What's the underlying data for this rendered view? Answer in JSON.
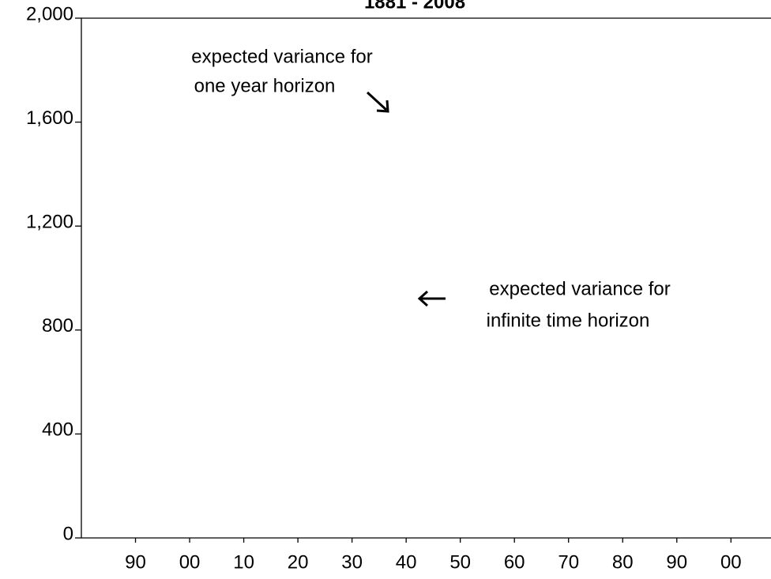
{
  "chart_data": {
    "type": "line",
    "title": "1881 - 2008",
    "xlim": [
      1880,
      2007.4
    ],
    "xticks": [
      {
        "value": 1890,
        "label": "90"
      },
      {
        "value": 1900,
        "label": "00"
      },
      {
        "value": 1910,
        "label": "10"
      },
      {
        "value": 1920,
        "label": "20"
      },
      {
        "value": 1930,
        "label": "30"
      },
      {
        "value": 1940,
        "label": "40"
      },
      {
        "value": 1950,
        "label": "50"
      },
      {
        "value": 1960,
        "label": "60"
      },
      {
        "value": 1970,
        "label": "70"
      },
      {
        "value": 1980,
        "label": "80"
      },
      {
        "value": 1990,
        "label": "90"
      },
      {
        "value": 2000,
        "label": "00"
      }
    ],
    "ylim": [
      0,
      2000
    ],
    "yticks": [
      0,
      400,
      800,
      {
        "value": 1200,
        "label": "1,200"
      },
      {
        "value": 1600,
        "label": "1,600"
      },
      {
        "value": 2000,
        "label": "2,000"
      }
    ],
    "annotations": [
      {
        "lines": [
          "expected variance for",
          "one year horizon"
        ]
      },
      {
        "lines": [
          "expected variance for",
          "infinite time horizon"
        ]
      }
    ]
  }
}
